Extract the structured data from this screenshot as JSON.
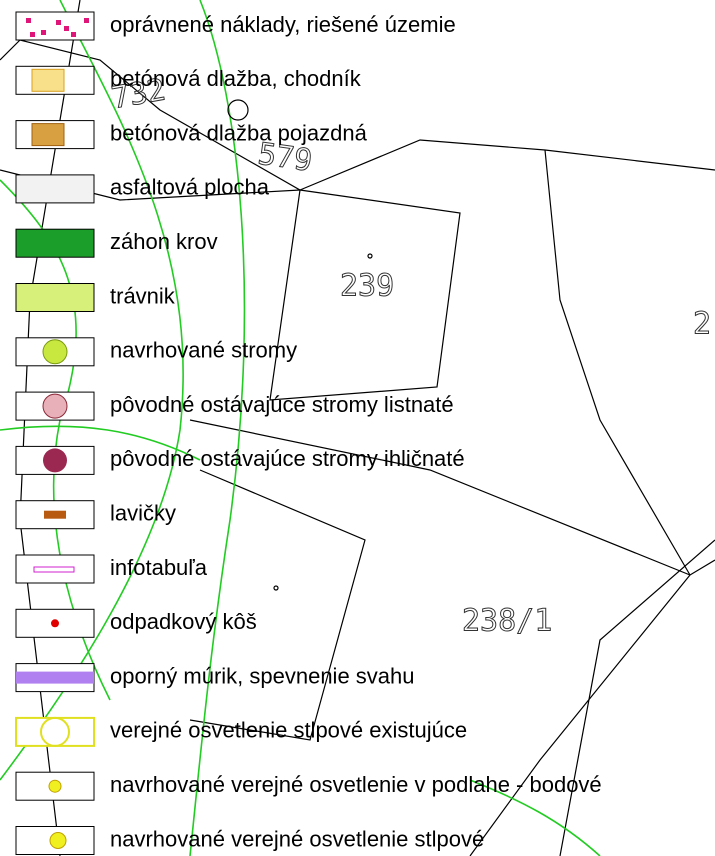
{
  "legend": {
    "items": [
      "oprávnené náklady, riešené územie",
      "betónová dlažba, chodník",
      "betónová dlažba pojazdná",
      "asfaltová plocha",
      "záhon krov",
      "trávnik",
      "navrhované stromy",
      "pôvodné ostávajúce stromy listnaté",
      "pôvodné ostávajúce stromy ihličnaté",
      "lavičky",
      "infotabuľa",
      "odpadkový kôš",
      "oporný múrik, spevnenie svahu",
      "verejné osvetlenie stlpové existujúce",
      "navrhované verejné osvetlenie v podlahe - bodové",
      "navrhované verejné osvetlenie stlpové"
    ]
  },
  "map": {
    "labels": [
      "239",
      "238/1",
      "2",
      "579",
      "732"
    ]
  }
}
